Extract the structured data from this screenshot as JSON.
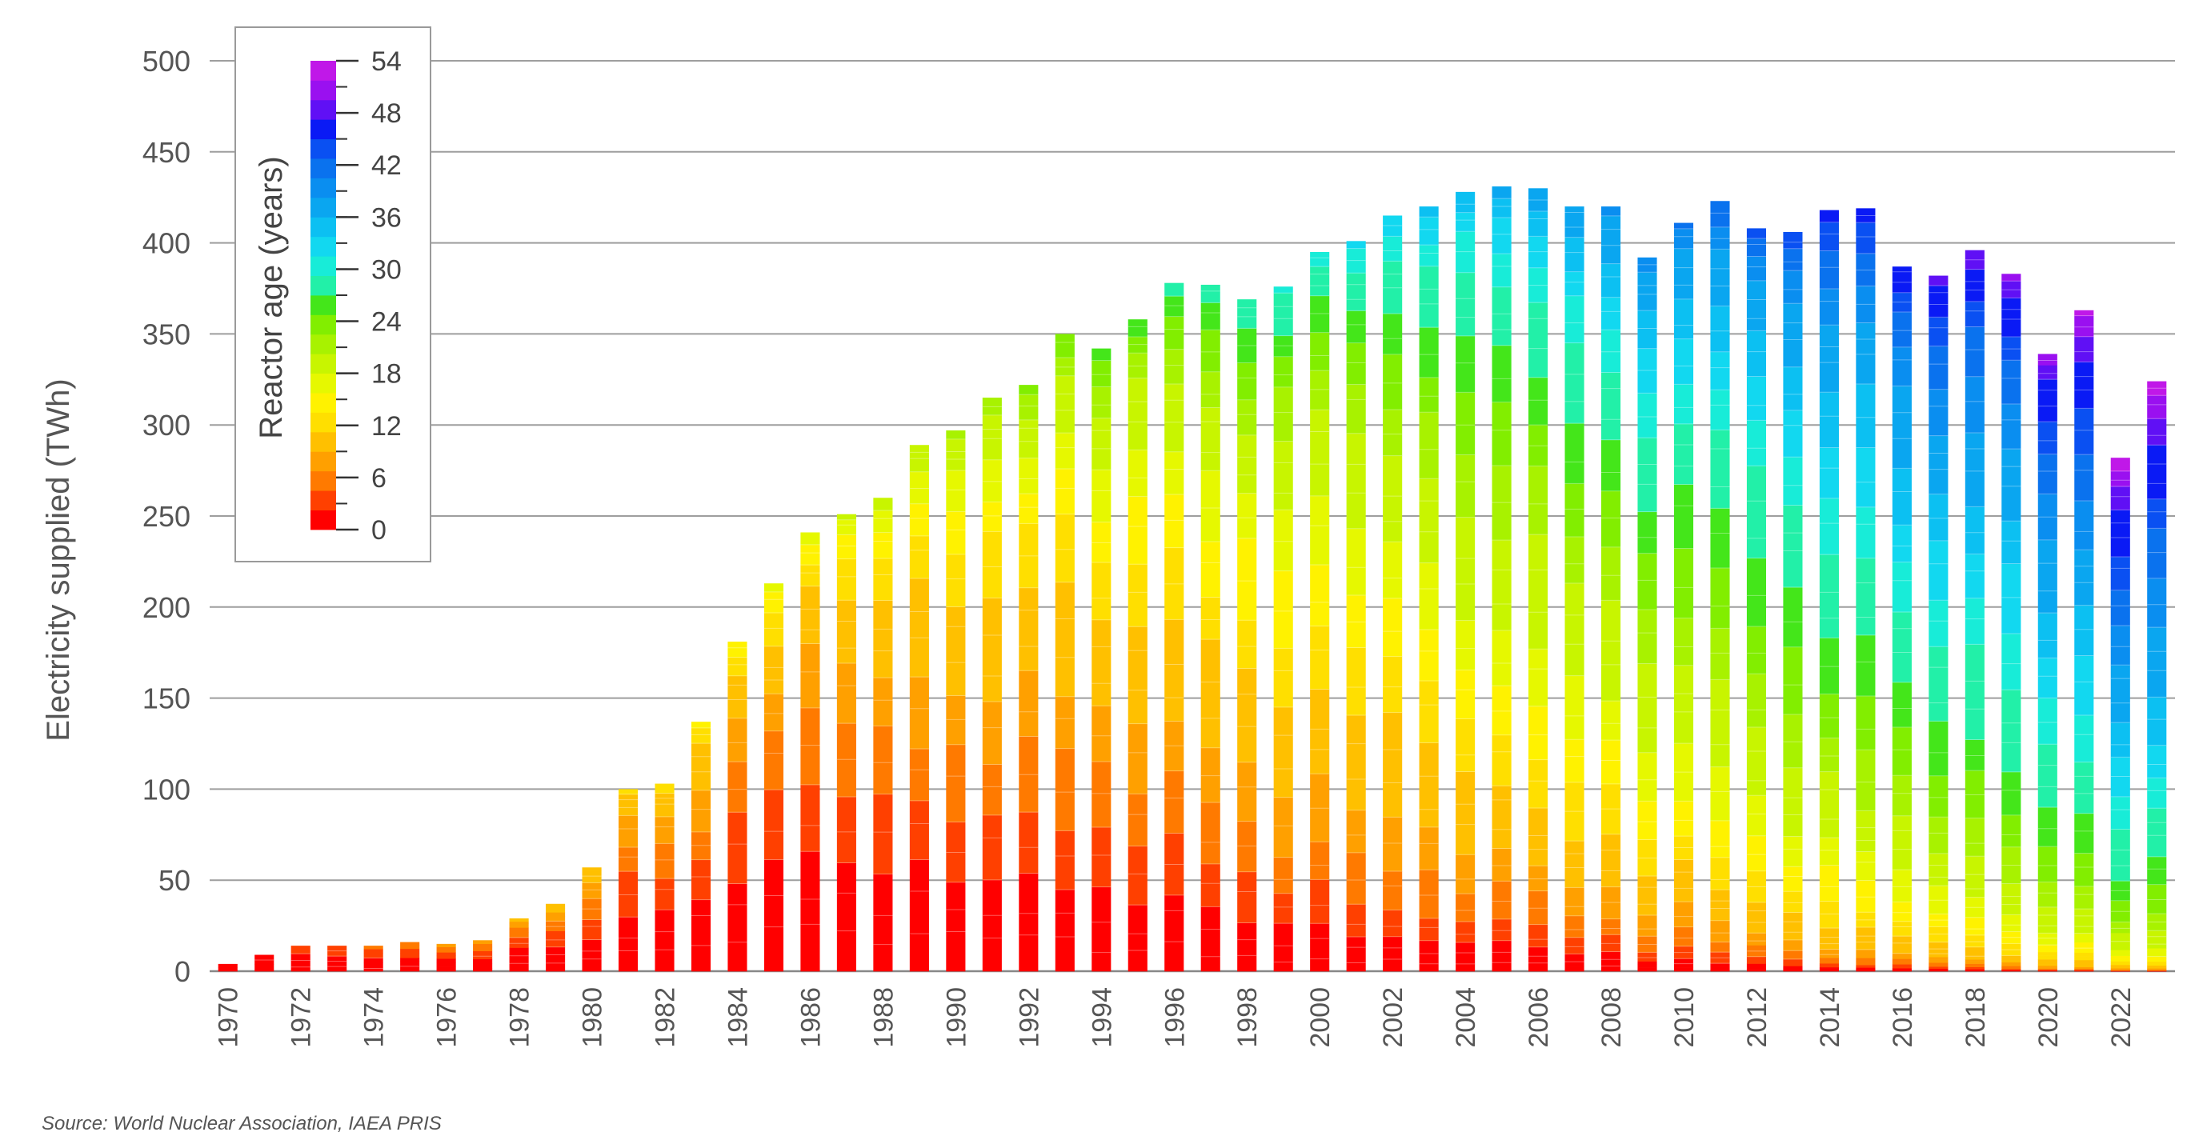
{
  "chart_data": {
    "type": "bar",
    "stacked": true,
    "ylabel": "Electricity supplied (TWh)",
    "ylim": [
      0,
      500
    ],
    "yticks": [
      0,
      50,
      100,
      150,
      200,
      250,
      300,
      350,
      400,
      450,
      500
    ],
    "grid": true,
    "categories": [
      1970,
      1971,
      1972,
      1973,
      1974,
      1975,
      1976,
      1977,
      1978,
      1979,
      1980,
      1981,
      1982,
      1983,
      1984,
      1985,
      1986,
      1987,
      1988,
      1989,
      1990,
      1991,
      1992,
      1993,
      1994,
      1995,
      1996,
      1997,
      1998,
      1999,
      2000,
      2001,
      2002,
      2003,
      2004,
      2005,
      2006,
      2007,
      2008,
      2009,
      2010,
      2011,
      2012,
      2013,
      2014,
      2015,
      2016,
      2017,
      2018,
      2019,
      2020,
      2021,
      2022,
      2023
    ],
    "xtick_labels": [
      "1970",
      "1972",
      "1974",
      "1976",
      "1978",
      "1980",
      "1982",
      "1984",
      "1986",
      "1988",
      "1990",
      "1992",
      "1994",
      "1996",
      "1998",
      "2000",
      "2002",
      "2004",
      "2006",
      "2008",
      "2010",
      "2012",
      "2014",
      "2016",
      "2018",
      "2020",
      "2022"
    ],
    "totals": [
      4,
      9,
      14,
      14,
      14,
      16,
      15,
      17,
      29,
      37,
      57,
      100,
      103,
      137,
      181,
      213,
      241,
      251,
      260,
      289,
      297,
      315,
      322,
      350,
      342,
      358,
      378,
      377,
      369,
      376,
      395,
      401,
      415,
      420,
      428,
      431,
      430,
      420,
      420,
      392,
      411,
      423,
      408,
      406,
      418,
      419,
      387,
      382,
      396,
      383,
      339,
      363,
      282,
      324
    ],
    "colorbar": {
      "title": "Reactor age (years)",
      "ticks": [
        0,
        6,
        12,
        18,
        24,
        30,
        36,
        42,
        48,
        54
      ],
      "colors": [
        "#ff0000",
        "#ff4000",
        "#ff7a00",
        "#ffa000",
        "#ffc000",
        "#ffdf00",
        "#fff200",
        "#e6f800",
        "#c8f500",
        "#a8f200",
        "#82ee00",
        "#44e61a",
        "#22f0a8",
        "#18ecd8",
        "#12d8f0",
        "#0cc0f2",
        "#0aa6f0",
        "#0a8ef0",
        "#0a72ee",
        "#0a50f2",
        "#0a1af5",
        "#6010f5",
        "#9a10f0",
        "#c018e8"
      ]
    },
    "source": "Source: World Nuclear Association, IAEA PRIS"
  }
}
